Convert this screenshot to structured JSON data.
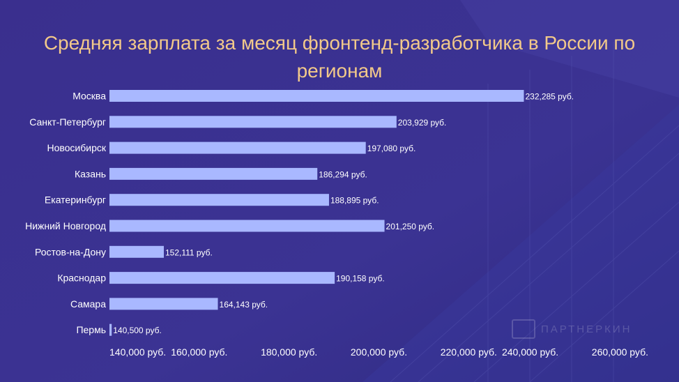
{
  "chart_data": {
    "type": "bar",
    "orientation": "horizontal",
    "title": "Средняя зарплата за месяц фронтенд-разработчика в России по регионам",
    "categories": [
      "Москва",
      "Санкт-Петербург",
      "Новосибирск",
      "Казань",
      "Екатеринбург",
      "Нижний Новгород",
      "Ростов-на-Дону",
      "Краснодар",
      "Самара",
      "Пермь"
    ],
    "values": [
      232285,
      203929,
      197080,
      186294,
      188895,
      201250,
      152111,
      190158,
      164143,
      140500
    ],
    "data_labels": [
      "232,285 руб.",
      "203,929 руб.",
      "197,080 руб.",
      "186,294 руб.",
      "188,895 руб.",
      "201,250 руб.",
      "152,111 руб.",
      "190,158 руб.",
      "164,143 руб.",
      "140,500 руб."
    ],
    "xlim": [
      140000,
      260000
    ],
    "x_ticks": [
      140000,
      160000,
      180000,
      200000,
      220000,
      240000,
      260000
    ],
    "x_tick_labels": [
      "140,000 руб.",
      "160,000 руб.",
      "180,000 руб.",
      "200,000 руб.",
      "220,000 руб.",
      "240,000 руб.",
      "260,000 руб."
    ],
    "grid": false,
    "colors": {
      "bar": "#a9b8ff",
      "text": "#ffffff",
      "title": "#f2c98a",
      "background": "#3b3190"
    }
  },
  "watermark": "ПАРТНЕРКИН"
}
